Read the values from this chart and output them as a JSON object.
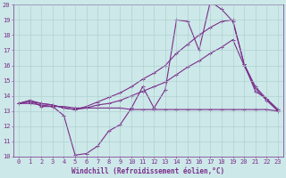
{
  "bg_color": "#cce8e8",
  "line_color": "#7b2d8b",
  "grid_color": "#aacccc",
  "xlabel": "Windchill (Refroidissement éolien,°C)",
  "xlim": [
    -0.5,
    23.5
  ],
  "ylim": [
    10,
    20
  ],
  "xticks": [
    0,
    1,
    2,
    3,
    4,
    5,
    6,
    7,
    8,
    9,
    10,
    11,
    12,
    13,
    14,
    15,
    16,
    17,
    18,
    19,
    20,
    21,
    22,
    23
  ],
  "yticks": [
    10,
    11,
    12,
    13,
    14,
    15,
    16,
    17,
    18,
    19,
    20
  ],
  "series": [
    {
      "x": [
        0,
        1,
        2,
        3,
        4,
        5,
        6,
        7,
        8,
        9,
        10,
        11,
        12,
        13,
        14,
        15,
        16,
        17,
        18,
        19,
        20,
        21,
        22,
        23
      ],
      "y": [
        13.5,
        13.7,
        13.3,
        13.3,
        12.7,
        10.1,
        10.2,
        10.7,
        11.7,
        12.1,
        13.2,
        14.6,
        13.2,
        14.4,
        19.0,
        18.9,
        17.0,
        20.2,
        19.7,
        18.9,
        16.1,
        14.3,
        13.8,
        13.1
      ]
    },
    {
      "x": [
        0,
        1,
        2,
        3,
        4,
        5,
        6,
        7,
        8,
        9,
        10,
        11,
        12,
        13,
        14,
        15,
        16,
        17,
        18,
        19,
        20,
        21,
        22,
        23
      ],
      "y": [
        13.5,
        13.5,
        13.4,
        13.3,
        13.3,
        13.2,
        13.2,
        13.2,
        13.2,
        13.2,
        13.1,
        13.1,
        13.1,
        13.1,
        13.1,
        13.1,
        13.1,
        13.1,
        13.1,
        13.1,
        13.1,
        13.1,
        13.1,
        13.0
      ]
    },
    {
      "x": [
        0,
        1,
        2,
        3,
        4,
        5,
        6,
        7,
        8,
        9,
        10,
        11,
        12,
        13,
        14,
        15,
        16,
        17,
        18,
        19,
        20,
        21,
        22,
        23
      ],
      "y": [
        13.5,
        13.7,
        13.5,
        13.4,
        13.2,
        13.1,
        13.3,
        13.6,
        13.9,
        14.2,
        14.6,
        15.1,
        15.5,
        16.0,
        16.8,
        17.4,
        18.0,
        18.5,
        18.9,
        19.0,
        16.1,
        14.6,
        13.8,
        13.1
      ]
    },
    {
      "x": [
        0,
        1,
        2,
        3,
        4,
        5,
        6,
        7,
        8,
        9,
        10,
        11,
        12,
        13,
        14,
        15,
        16,
        17,
        18,
        19,
        20,
        21,
        22,
        23
      ],
      "y": [
        13.5,
        13.6,
        13.5,
        13.4,
        13.2,
        13.1,
        13.2,
        13.4,
        13.5,
        13.7,
        14.0,
        14.3,
        14.6,
        14.9,
        15.4,
        15.9,
        16.3,
        16.8,
        17.2,
        17.7,
        16.0,
        14.5,
        13.7,
        13.0
      ]
    }
  ],
  "marker": "+",
  "markersize": 3,
  "linewidth": 0.8,
  "axis_fontsize": 5.5,
  "tick_fontsize": 5.0
}
